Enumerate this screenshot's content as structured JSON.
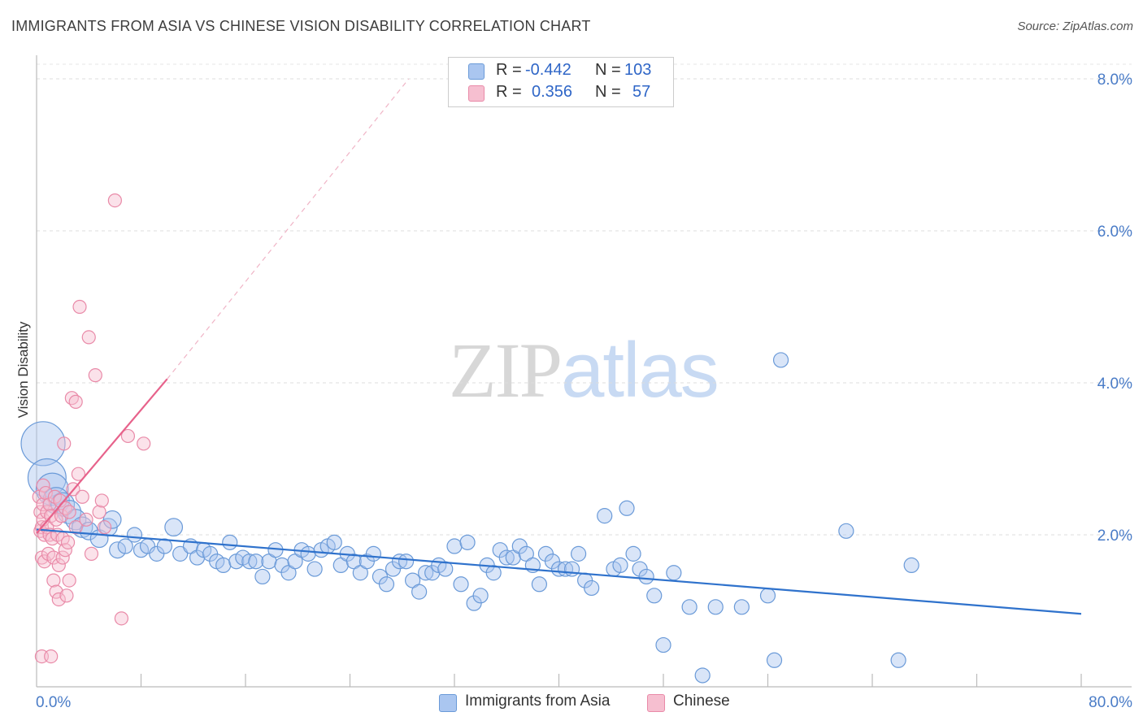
{
  "header": {
    "title": "IMMIGRANTS FROM ASIA VS CHINESE VISION DISABILITY CORRELATION CHART",
    "source": "Source: ZipAtlas.com"
  },
  "watermark": {
    "zip": "ZIP",
    "atlas": "atlas"
  },
  "legend": {
    "r_label": "R =",
    "n_label": "N =",
    "series": [
      {
        "r": "-0.442",
        "n": "103"
      },
      {
        "r": "0.356",
        "n": "57"
      }
    ]
  },
  "bottom_legend": [
    {
      "label": "Immigrants from Asia"
    },
    {
      "label": "Chinese"
    }
  ],
  "colors": {
    "blue_fill": "#aac6f0",
    "blue_stroke": "#6a9ad8",
    "blue_line": "#2f72cc",
    "pink_fill": "#f6bfd0",
    "pink_stroke": "#e98aa8",
    "pink_line": "#e7628b",
    "accent_text": "#4a7cc7"
  },
  "chart_data": {
    "type": "scatter",
    "title": "IMMIGRANTS FROM ASIA VS CHINESE VISION DISABILITY CORRELATION CHART",
    "xlabel": "",
    "ylabel": "Vision Disability",
    "xlim": [
      0,
      80
    ],
    "ylim": [
      0,
      8
    ],
    "x_tick_labels": [
      "0.0%",
      "80.0%"
    ],
    "y_ticks": [
      2,
      4,
      6,
      8
    ],
    "y_tick_labels": [
      "2.0%",
      "4.0%",
      "6.0%",
      "8.0%"
    ],
    "series": [
      {
        "name": "Immigrants from Asia",
        "r": -0.442,
        "n": 103,
        "trend": {
          "x": [
            0,
            80
          ],
          "y": [
            2.07,
            0.96
          ]
        },
        "points": [
          [
            0.5,
            3.2,
            3
          ],
          [
            0.8,
            2.75,
            2.6
          ],
          [
            1.2,
            2.6,
            2.2
          ],
          [
            1.5,
            2.45,
            1.8
          ],
          [
            2.0,
            2.4,
            1.6
          ],
          [
            2.5,
            2.3,
            1.6
          ],
          [
            3.0,
            2.2,
            1.4
          ],
          [
            3.5,
            2.1,
            1.4
          ],
          [
            4.0,
            2.05,
            1.2
          ],
          [
            4.8,
            1.95,
            1.2
          ],
          [
            5.5,
            2.1,
            1.2
          ],
          [
            5.8,
            2.2,
            1.2
          ],
          [
            6.2,
            1.8,
            1.1
          ],
          [
            6.8,
            1.85,
            1
          ],
          [
            7.5,
            2.0,
            1
          ],
          [
            8.0,
            1.8,
            1
          ],
          [
            8.5,
            1.85,
            1
          ],
          [
            9.2,
            1.75,
            1
          ],
          [
            9.8,
            1.85,
            1
          ],
          [
            10.5,
            2.1,
            1.2
          ],
          [
            11.0,
            1.75,
            1
          ],
          [
            11.8,
            1.85,
            1
          ],
          [
            12.3,
            1.7,
            1
          ],
          [
            12.8,
            1.8,
            1
          ],
          [
            13.3,
            1.75,
            1
          ],
          [
            13.8,
            1.65,
            1
          ],
          [
            14.3,
            1.6,
            1
          ],
          [
            14.8,
            1.9,
            1
          ],
          [
            15.3,
            1.65,
            1
          ],
          [
            15.8,
            1.7,
            1
          ],
          [
            16.3,
            1.65,
            1
          ],
          [
            16.8,
            1.65,
            1
          ],
          [
            17.3,
            1.45,
            1
          ],
          [
            17.8,
            1.65,
            1
          ],
          [
            18.3,
            1.8,
            1
          ],
          [
            18.8,
            1.6,
            1
          ],
          [
            19.3,
            1.5,
            1
          ],
          [
            19.8,
            1.65,
            1
          ],
          [
            20.3,
            1.8,
            1
          ],
          [
            20.8,
            1.75,
            1
          ],
          [
            21.3,
            1.55,
            1
          ],
          [
            21.8,
            1.8,
            1
          ],
          [
            22.3,
            1.85,
            1
          ],
          [
            22.8,
            1.9,
            1
          ],
          [
            23.3,
            1.6,
            1
          ],
          [
            23.8,
            1.75,
            1
          ],
          [
            24.3,
            1.65,
            1
          ],
          [
            24.8,
            1.5,
            1
          ],
          [
            25.3,
            1.65,
            1
          ],
          [
            25.8,
            1.75,
            1
          ],
          [
            26.3,
            1.45,
            1
          ],
          [
            26.8,
            1.35,
            1
          ],
          [
            27.3,
            1.55,
            1
          ],
          [
            27.8,
            1.65,
            1
          ],
          [
            28.3,
            1.65,
            1
          ],
          [
            28.8,
            1.4,
            1
          ],
          [
            29.3,
            1.25,
            1
          ],
          [
            29.8,
            1.5,
            1
          ],
          [
            30.3,
            1.5,
            1
          ],
          [
            30.8,
            1.6,
            1
          ],
          [
            31.3,
            1.55,
            1
          ],
          [
            32.0,
            1.85,
            1
          ],
          [
            32.5,
            1.35,
            1
          ],
          [
            33.0,
            1.9,
            1
          ],
          [
            33.5,
            1.1,
            1
          ],
          [
            34.0,
            1.2,
            1
          ],
          [
            34.5,
            1.6,
            1
          ],
          [
            35.0,
            1.5,
            1
          ],
          [
            35.5,
            1.8,
            1
          ],
          [
            36.0,
            1.7,
            1
          ],
          [
            36.5,
            1.7,
            1
          ],
          [
            37.0,
            1.85,
            1
          ],
          [
            37.5,
            1.75,
            1
          ],
          [
            38.0,
            1.6,
            1
          ],
          [
            38.5,
            1.35,
            1
          ],
          [
            39.0,
            1.75,
            1
          ],
          [
            39.5,
            1.65,
            1
          ],
          [
            40.0,
            1.55,
            1
          ],
          [
            40.5,
            1.55,
            1
          ],
          [
            41.0,
            1.55,
            1
          ],
          [
            41.5,
            1.75,
            1
          ],
          [
            42.0,
            1.4,
            1
          ],
          [
            42.5,
            1.3,
            1
          ],
          [
            43.5,
            2.25,
            1
          ],
          [
            44.2,
            1.55,
            1
          ],
          [
            44.7,
            1.6,
            1
          ],
          [
            45.2,
            2.35,
            1
          ],
          [
            45.7,
            1.75,
            1
          ],
          [
            46.2,
            1.55,
            1
          ],
          [
            46.7,
            1.45,
            1
          ],
          [
            47.3,
            1.2,
            1
          ],
          [
            48.0,
            0.55,
            1
          ],
          [
            48.8,
            1.5,
            1
          ],
          [
            50.0,
            1.05,
            1
          ],
          [
            51.0,
            0.15,
            1
          ],
          [
            52.0,
            1.05,
            1
          ],
          [
            54.0,
            1.05,
            1
          ],
          [
            56.0,
            1.2,
            1
          ],
          [
            56.5,
            0.35,
            1
          ],
          [
            57.0,
            4.3,
            1
          ],
          [
            62.0,
            2.05,
            1
          ],
          [
            66.0,
            0.35,
            1
          ],
          [
            67.0,
            1.6,
            1
          ]
        ]
      },
      {
        "name": "Chinese",
        "r": 0.356,
        "n": 57,
        "trend": {
          "x": [
            0,
            10
          ],
          "y": [
            2.02,
            4.05
          ]
        },
        "trend_extension": {
          "x": [
            10,
            28.5
          ],
          "y": [
            4.05,
            8.0
          ]
        },
        "points": [
          [
            0.2,
            2.5
          ],
          [
            0.3,
            2.3
          ],
          [
            0.3,
            2.05
          ],
          [
            0.4,
            2.1
          ],
          [
            0.4,
            1.7
          ],
          [
            0.5,
            2.65
          ],
          [
            0.5,
            2.4
          ],
          [
            0.5,
            2.2
          ],
          [
            0.6,
            2.0
          ],
          [
            0.6,
            1.65
          ],
          [
            0.7,
            2.55
          ],
          [
            0.8,
            2.3
          ],
          [
            0.8,
            2.1
          ],
          [
            0.9,
            1.75
          ],
          [
            1.0,
            2.4
          ],
          [
            1.0,
            2.0
          ],
          [
            1.1,
            2.25
          ],
          [
            1.2,
            1.95
          ],
          [
            1.3,
            1.7
          ],
          [
            1.3,
            1.4
          ],
          [
            1.4,
            2.5
          ],
          [
            1.5,
            2.2
          ],
          [
            1.5,
            1.25
          ],
          [
            1.6,
            2.0
          ],
          [
            1.7,
            1.6
          ],
          [
            1.7,
            1.15
          ],
          [
            1.8,
            2.45
          ],
          [
            1.9,
            2.25
          ],
          [
            2.0,
            1.95
          ],
          [
            2.0,
            1.7
          ],
          [
            2.1,
            3.2
          ],
          [
            2.2,
            2.35
          ],
          [
            2.2,
            1.8
          ],
          [
            2.3,
            1.2
          ],
          [
            2.4,
            1.9
          ],
          [
            2.5,
            1.4
          ],
          [
            2.5,
            2.3
          ],
          [
            2.7,
            3.8
          ],
          [
            2.8,
            2.6
          ],
          [
            3.0,
            3.75
          ],
          [
            3.0,
            2.1
          ],
          [
            3.2,
            2.8
          ],
          [
            3.3,
            5.0
          ],
          [
            3.5,
            2.5
          ],
          [
            3.8,
            2.2
          ],
          [
            4.0,
            4.6
          ],
          [
            4.2,
            1.75
          ],
          [
            4.5,
            4.1
          ],
          [
            4.8,
            2.3
          ],
          [
            5.0,
            2.45
          ],
          [
            5.2,
            2.1
          ],
          [
            6.0,
            6.4
          ],
          [
            6.5,
            0.9
          ],
          [
            7.0,
            3.3
          ],
          [
            8.2,
            3.2
          ],
          [
            0.4,
            0.4
          ],
          [
            1.1,
            0.4
          ]
        ]
      }
    ]
  }
}
